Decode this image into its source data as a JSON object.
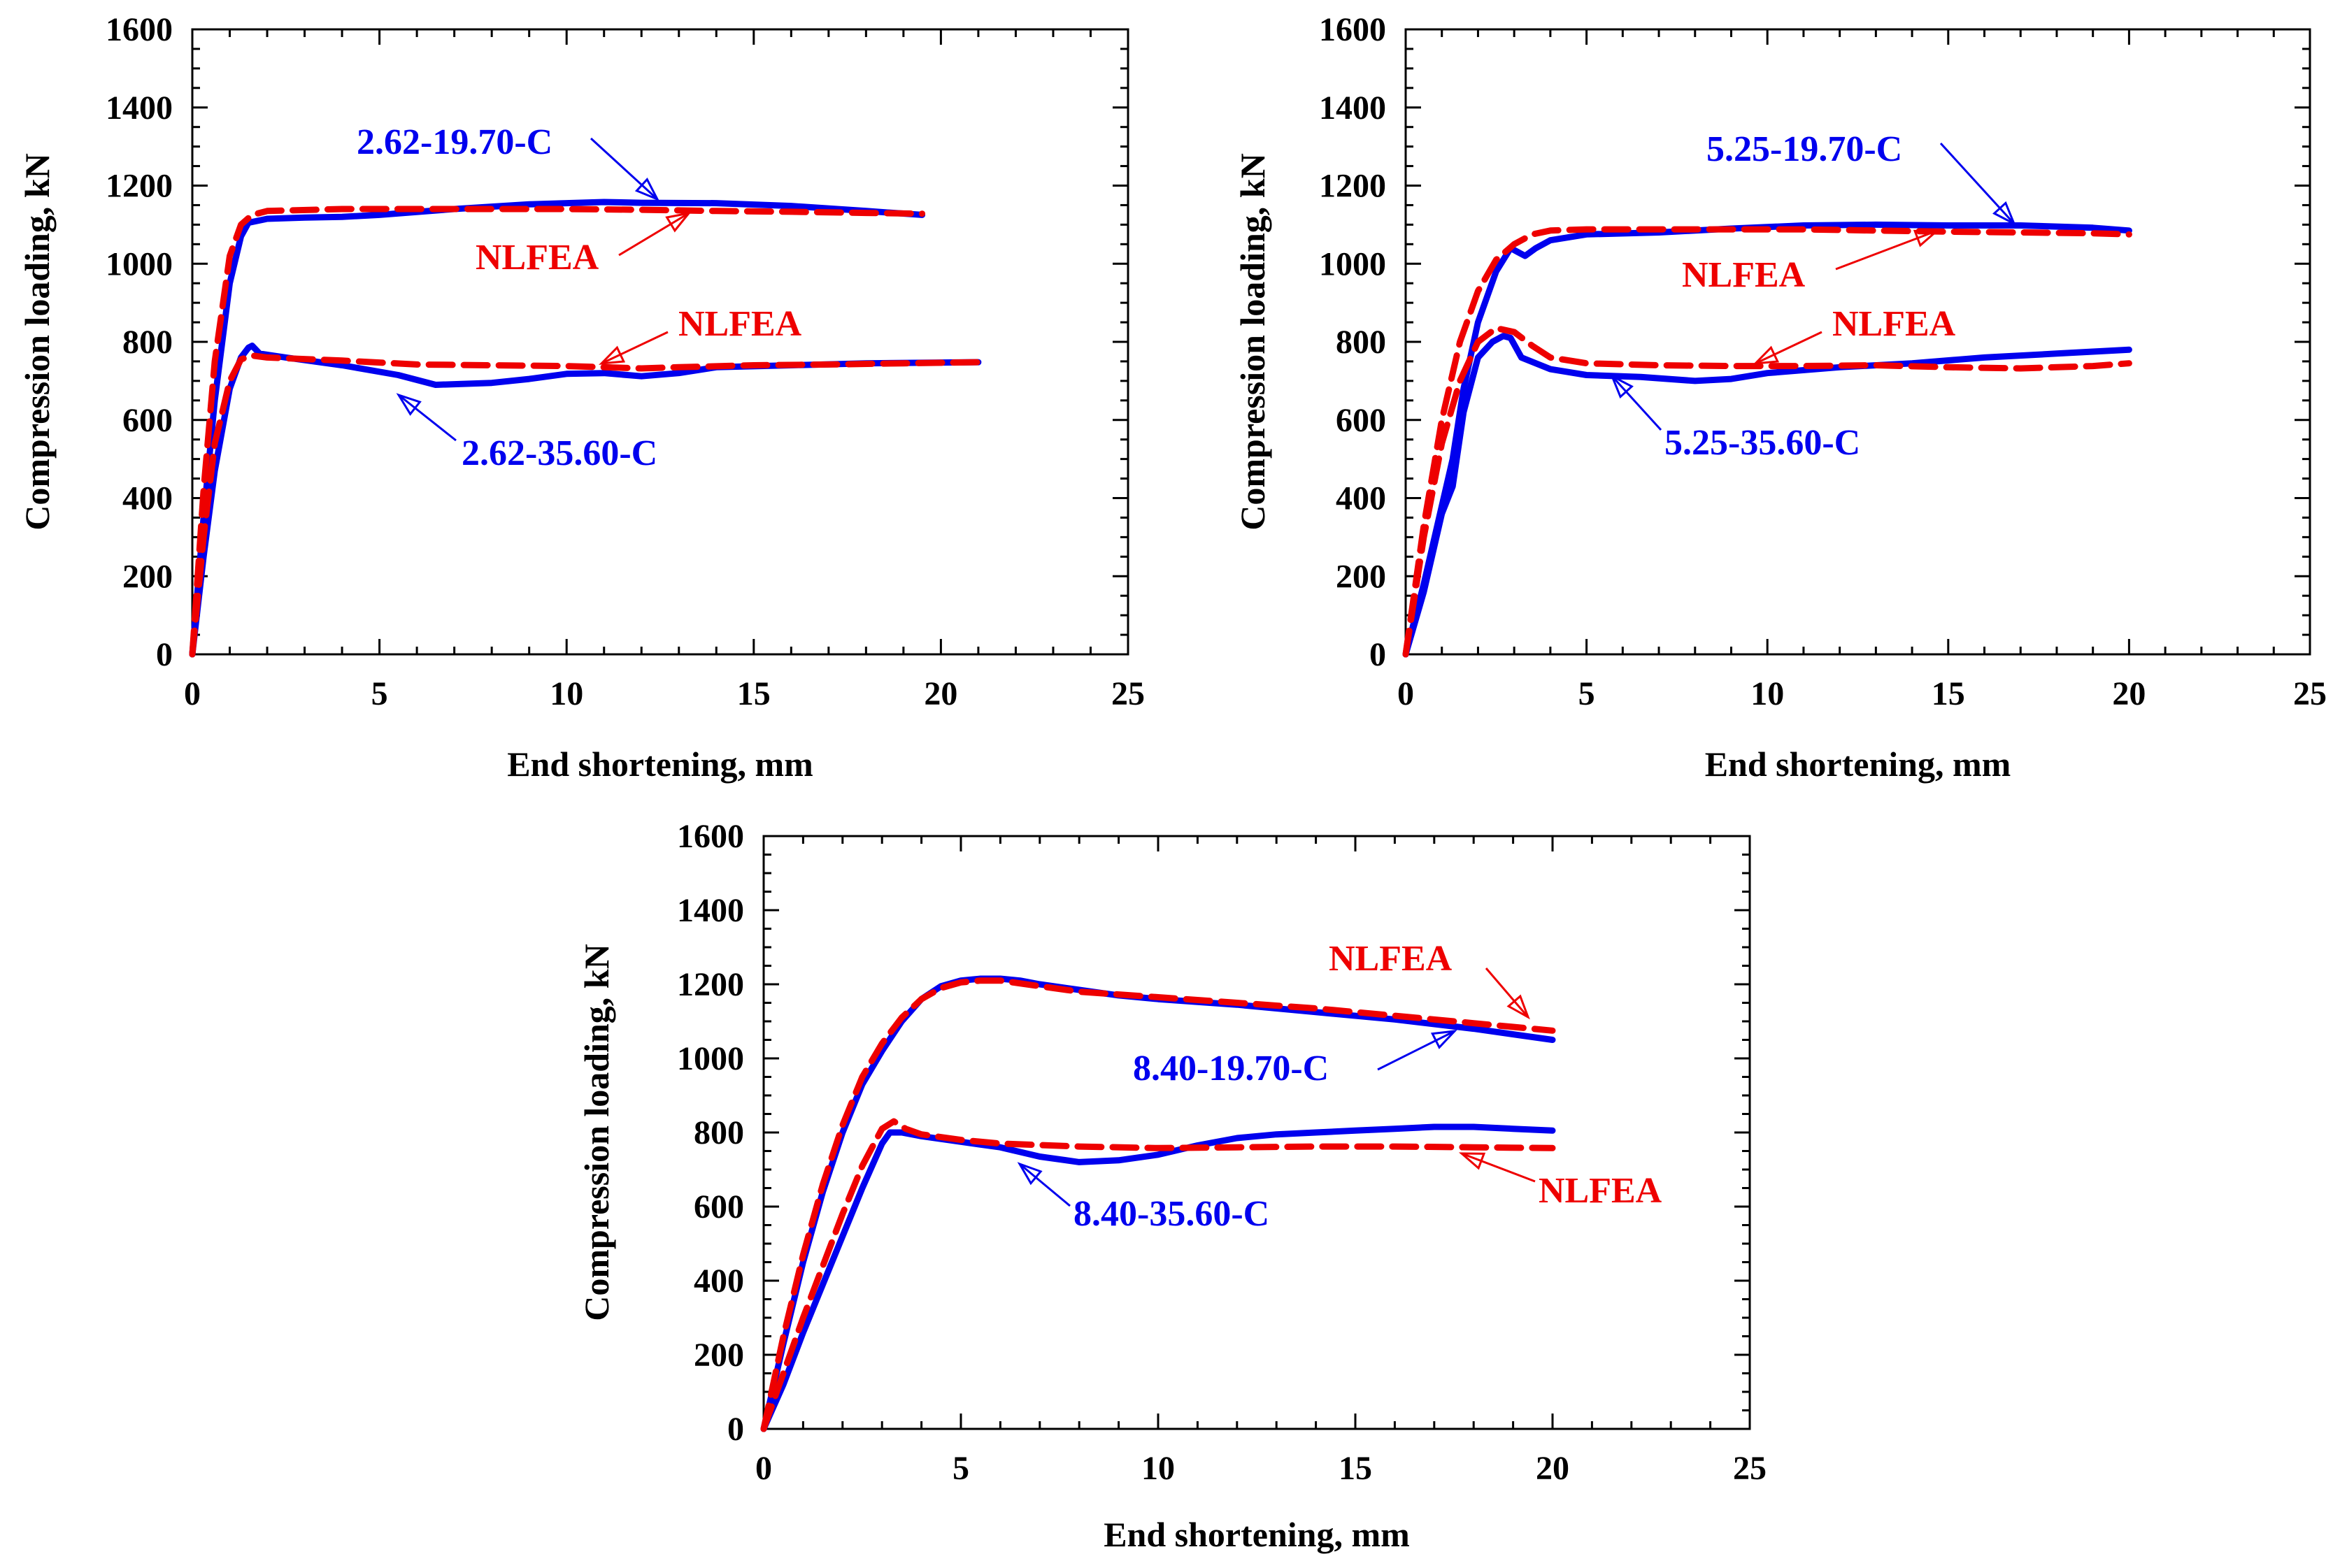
{
  "colors": {
    "experiment": "#0000ee",
    "nlfea": "#ee0000",
    "axis": "#000000"
  },
  "chart_data": [
    {
      "type": "line",
      "xlabel": "End shortening, mm",
      "ylabel": "Compression loading, kN",
      "xlim": [
        0,
        25
      ],
      "ylim": [
        0,
        1600
      ],
      "xticks": [
        "0",
        "5",
        "10",
        "15",
        "20",
        "25"
      ],
      "yticks": [
        "0",
        "200",
        "400",
        "600",
        "800",
        "1000",
        "1200",
        "1400",
        "1600"
      ],
      "grid": false,
      "series": [
        {
          "name": "2.62-19.70-C",
          "style": "solid",
          "color": "#0000ee",
          "x": [
            0,
            0.3,
            0.6,
            1.0,
            1.3,
            1.5,
            2,
            3,
            4,
            5,
            7,
            9,
            10,
            11,
            12,
            14,
            16,
            18,
            19.5
          ],
          "y": [
            0,
            350,
            650,
            950,
            1070,
            1105,
            1115,
            1118,
            1120,
            1125,
            1140,
            1152,
            1155,
            1158,
            1156,
            1155,
            1148,
            1135,
            1125
          ]
        },
        {
          "name": "NLFEA (2.62-19.70-C)",
          "style": "dashed",
          "color": "#ee0000",
          "x": [
            0,
            0.3,
            0.6,
            1.0,
            1.3,
            1.6,
            2,
            4,
            6,
            8,
            10,
            12,
            14,
            16,
            18,
            19.5
          ],
          "y": [
            0,
            420,
            750,
            1020,
            1100,
            1125,
            1135,
            1140,
            1140,
            1140,
            1140,
            1138,
            1135,
            1133,
            1130,
            1128
          ]
        },
        {
          "name": "2.62-35.60-C",
          "style": "solid",
          "color": "#0000ee",
          "x": [
            0,
            0.3,
            0.6,
            1.0,
            1.3,
            1.5,
            1.6,
            1.8,
            2.5,
            4,
            5.5,
            6.5,
            8,
            9,
            10,
            11,
            12,
            13,
            14,
            16,
            18,
            21
          ],
          "y": [
            0,
            250,
            470,
            680,
            760,
            785,
            790,
            770,
            760,
            740,
            715,
            690,
            695,
            705,
            718,
            720,
            712,
            720,
            735,
            740,
            745,
            748
          ]
        },
        {
          "name": "NLFEA (2.62-35.60-C)",
          "style": "dashed",
          "color": "#ee0000",
          "x": [
            0,
            0.3,
            0.6,
            1.0,
            1.3,
            1.6,
            2,
            4,
            6,
            8,
            10,
            11,
            12,
            13,
            15,
            17,
            19,
            21
          ],
          "y": [
            0,
            300,
            540,
            700,
            755,
            765,
            760,
            752,
            742,
            740,
            738,
            735,
            732,
            735,
            740,
            742,
            745,
            748
          ]
        }
      ],
      "annotations": [
        {
          "text": "2.62-19.70-C",
          "color": "#0000ee"
        },
        {
          "text": "NLFEA",
          "color": "#ee0000"
        },
        {
          "text": "NLFEA",
          "color": "#ee0000"
        },
        {
          "text": "2.62-35.60-C",
          "color": "#0000ee"
        }
      ]
    },
    {
      "type": "line",
      "xlabel": "End shortening, mm",
      "ylabel": "Compression loading, kN",
      "xlim": [
        0,
        25
      ],
      "ylim": [
        0,
        1600
      ],
      "xticks": [
        "0",
        "5",
        "10",
        "15",
        "20",
        "25"
      ],
      "yticks": [
        "0",
        "200",
        "400",
        "600",
        "800",
        "1000",
        "1200",
        "1400",
        "1600"
      ],
      "grid": false,
      "series": [
        {
          "name": "5.25-19.70-C",
          "style": "solid",
          "color": "#0000ee",
          "x": [
            0,
            0.5,
            1.0,
            1.3,
            1.6,
            2.0,
            2.5,
            2.9,
            3.1,
            3.3,
            3.6,
            4,
            5,
            7,
            9,
            11,
            13,
            15,
            17,
            19,
            20
          ],
          "y": [
            0,
            180,
            380,
            500,
            680,
            850,
            980,
            1040,
            1030,
            1020,
            1040,
            1060,
            1075,
            1080,
            1090,
            1098,
            1100,
            1098,
            1098,
            1092,
            1085
          ]
        },
        {
          "name": "NLFEA (5.25-19.70-C)",
          "style": "dashed",
          "color": "#ee0000",
          "x": [
            0,
            0.5,
            1.0,
            1.5,
            2.0,
            2.5,
            3.0,
            3.5,
            4,
            5,
            7,
            9,
            11,
            13,
            15,
            17,
            19,
            20
          ],
          "y": [
            0,
            330,
            600,
            800,
            930,
            1010,
            1050,
            1075,
            1085,
            1088,
            1088,
            1088,
            1088,
            1085,
            1082,
            1080,
            1078,
            1075
          ]
        },
        {
          "name": "5.25-35.60-C",
          "style": "solid",
          "color": "#0000ee",
          "x": [
            0,
            0.5,
            1.0,
            1.3,
            1.6,
            2.0,
            2.4,
            2.7,
            2.9,
            3.2,
            4,
            5,
            6.5,
            8,
            9,
            10,
            12,
            14,
            16,
            18,
            20
          ],
          "y": [
            0,
            160,
            360,
            430,
            620,
            760,
            800,
            815,
            810,
            760,
            730,
            715,
            710,
            700,
            705,
            720,
            735,
            745,
            760,
            770,
            780
          ]
        },
        {
          "name": "NLFEA (5.25-35.60-C)",
          "style": "dashed",
          "color": "#ee0000",
          "x": [
            0,
            0.5,
            1.0,
            1.5,
            2.0,
            2.5,
            3.0,
            3.5,
            4,
            5,
            7,
            9,
            11,
            13,
            15,
            17,
            19,
            20
          ],
          "y": [
            0,
            300,
            540,
            700,
            800,
            835,
            825,
            790,
            760,
            745,
            740,
            738,
            738,
            740,
            735,
            732,
            738,
            745
          ]
        }
      ],
      "annotations": [
        {
          "text": "5.25-19.70-C",
          "color": "#0000ee"
        },
        {
          "text": "NLFEA",
          "color": "#ee0000"
        },
        {
          "text": "NLFEA",
          "color": "#ee0000"
        },
        {
          "text": "5.25-35.60-C",
          "color": "#0000ee"
        }
      ]
    },
    {
      "type": "line",
      "xlabel": "End shortening, mm",
      "ylabel": "Compression loading, kN",
      "xlim": [
        0,
        25
      ],
      "ylim": [
        0,
        1600
      ],
      "xticks": [
        "0",
        "5",
        "10",
        "15",
        "20",
        "25"
      ],
      "yticks": [
        "0",
        "200",
        "400",
        "600",
        "800",
        "1000",
        "1200",
        "1400",
        "1600"
      ],
      "grid": false,
      "series": [
        {
          "name": "8.40-19.70-C",
          "style": "solid",
          "color": "#0000ee",
          "x": [
            0,
            0.5,
            1.0,
            1.5,
            2.0,
            2.5,
            3.0,
            3.5,
            4.0,
            4.5,
            5,
            5.5,
            6,
            6.5,
            7,
            8,
            9,
            10,
            12,
            14,
            16,
            18,
            20
          ],
          "y": [
            0,
            230,
            450,
            640,
            800,
            930,
            1020,
            1100,
            1160,
            1195,
            1210,
            1215,
            1215,
            1210,
            1200,
            1185,
            1170,
            1160,
            1145,
            1125,
            1105,
            1080,
            1050
          ]
        },
        {
          "name": "NLFEA (8.40-19.70-C)",
          "style": "dashed",
          "color": "#ee0000",
          "x": [
            0,
            0.5,
            1.0,
            1.5,
            2.0,
            2.5,
            3.0,
            3.5,
            4.0,
            4.5,
            5,
            5.5,
            6,
            7,
            8,
            10,
            12,
            14,
            16,
            18,
            20
          ],
          "y": [
            0,
            250,
            470,
            660,
            820,
            950,
            1040,
            1110,
            1160,
            1190,
            1205,
            1210,
            1210,
            1195,
            1180,
            1165,
            1150,
            1135,
            1115,
            1095,
            1075
          ]
        },
        {
          "name": "8.40-35.60-C",
          "style": "solid",
          "color": "#0000ee",
          "x": [
            0,
            0.5,
            1.0,
            1.5,
            2.0,
            2.5,
            3.0,
            3.2,
            3.5,
            4,
            5,
            6,
            7,
            8,
            9,
            10,
            11,
            12,
            13,
            14,
            15,
            16,
            17,
            18,
            19,
            20
          ],
          "y": [
            0,
            120,
            260,
            390,
            520,
            650,
            770,
            800,
            800,
            790,
            775,
            760,
            735,
            720,
            725,
            740,
            765,
            785,
            795,
            800,
            805,
            810,
            815,
            815,
            810,
            805
          ]
        },
        {
          "name": "NLFEA (8.40-35.60-C)",
          "style": "dashed",
          "color": "#ee0000",
          "x": [
            0,
            0.5,
            1.0,
            1.5,
            2.0,
            2.5,
            3.0,
            3.3,
            3.6,
            4,
            5,
            6,
            8,
            10,
            12,
            14,
            16,
            18,
            20
          ],
          "y": [
            0,
            150,
            300,
            440,
            580,
            710,
            810,
            830,
            810,
            795,
            780,
            770,
            762,
            758,
            760,
            762,
            762,
            760,
            758
          ]
        }
      ],
      "annotations": [
        {
          "text": "NLFEA",
          "color": "#ee0000"
        },
        {
          "text": "8.40-19.70-C",
          "color": "#0000ee"
        },
        {
          "text": "8.40-35.60-C",
          "color": "#0000ee"
        },
        {
          "text": "NLFEA",
          "color": "#ee0000"
        }
      ]
    }
  ]
}
